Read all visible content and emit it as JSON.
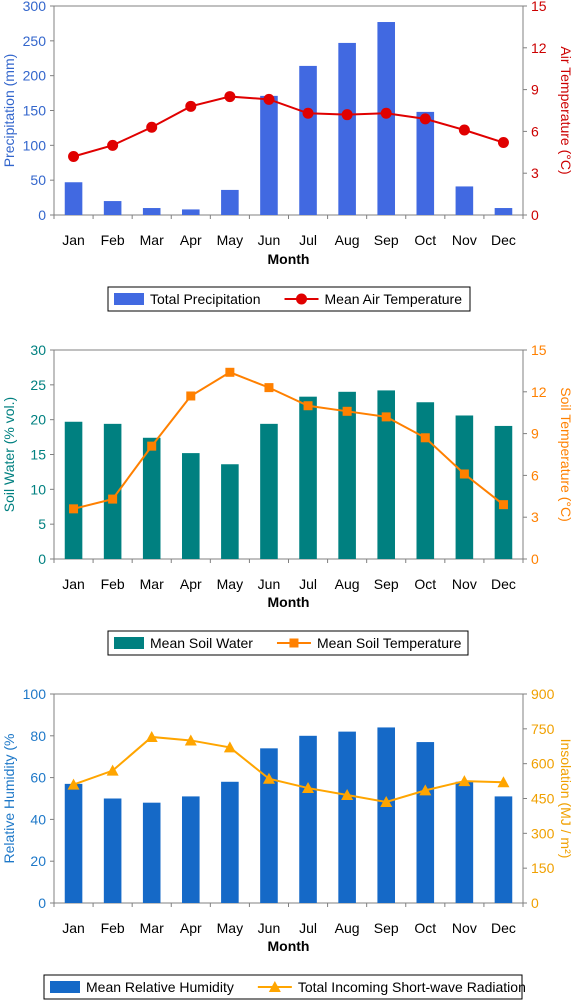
{
  "x_title": "Month",
  "months": [
    "Jan",
    "Feb",
    "Mar",
    "Apr",
    "May",
    "Jun",
    "Jul",
    "Aug",
    "Sep",
    "Oct",
    "Nov",
    "Dec"
  ],
  "chart_data": [
    {
      "type": "bar",
      "categories": [
        "Jan",
        "Feb",
        "Mar",
        "Apr",
        "May",
        "Jun",
        "Jul",
        "Aug",
        "Sep",
        "Oct",
        "Nov",
        "Dec"
      ],
      "xlabel": "Month",
      "left_axis": {
        "label": "Precipitation (mm)",
        "ylim": [
          0,
          300
        ],
        "ticks": [
          0,
          50,
          100,
          150,
          200,
          250,
          300
        ],
        "color": "#3366cc"
      },
      "right_axis": {
        "label": "Air Temperature (°C)",
        "ylim": [
          0,
          15
        ],
        "ticks": [
          0,
          3,
          6,
          9,
          12,
          15
        ],
        "color": "#cc0000"
      },
      "series": [
        {
          "name": "Total Precipitation",
          "kind": "bar",
          "axis": "left",
          "color": "#4169e1",
          "values": [
            47,
            20,
            10,
            8,
            36,
            171,
            214,
            247,
            277,
            148,
            41,
            10
          ]
        },
        {
          "name": "Mean Air Temperature",
          "kind": "line",
          "axis": "right",
          "color": "#e00000",
          "marker": "circle",
          "values": [
            4.2,
            5.0,
            6.3,
            7.8,
            8.5,
            8.3,
            7.3,
            7.2,
            7.3,
            6.9,
            6.1,
            5.2
          ]
        }
      ],
      "legend": {
        "position": "bottom"
      }
    },
    {
      "type": "bar",
      "categories": [
        "Jan",
        "Feb",
        "Mar",
        "Apr",
        "May",
        "Jun",
        "Jul",
        "Aug",
        "Sep",
        "Oct",
        "Nov",
        "Dec"
      ],
      "xlabel": "Month",
      "left_axis": {
        "label": "Soil Water (% vol.)",
        "ylim": [
          0,
          30
        ],
        "ticks": [
          0,
          5,
          10,
          15,
          20,
          25,
          30
        ],
        "color": "#008080"
      },
      "right_axis": {
        "label": "Soil Temperature (°C)",
        "ylim": [
          0,
          15
        ],
        "ticks": [
          0,
          3,
          6,
          9,
          12,
          15
        ],
        "color": "#ff8000"
      },
      "series": [
        {
          "name": "Mean Soil Water",
          "kind": "bar",
          "axis": "left",
          "color": "#008080",
          "values": [
            19.7,
            19.4,
            17.4,
            15.2,
            13.6,
            19.4,
            23.3,
            24.0,
            24.2,
            22.5,
            20.6,
            19.1
          ]
        },
        {
          "name": "Mean Soil Temperature",
          "kind": "line",
          "axis": "right",
          "color": "#ff8000",
          "marker": "square",
          "values": [
            3.6,
            4.3,
            8.1,
            11.7,
            13.4,
            12.3,
            11.0,
            10.6,
            10.2,
            8.7,
            6.1,
            3.9
          ]
        }
      ],
      "legend": {
        "position": "bottom"
      }
    },
    {
      "type": "bar",
      "categories": [
        "Jan",
        "Feb",
        "Mar",
        "Apr",
        "May",
        "Jun",
        "Jul",
        "Aug",
        "Sep",
        "Oct",
        "Nov",
        "Dec"
      ],
      "xlabel": "Month",
      "left_axis": {
        "label": "Relative Humidity (%",
        "ylim": [
          0,
          100
        ],
        "ticks": [
          0,
          20,
          40,
          60,
          80,
          100
        ],
        "color": "#1e78c8"
      },
      "right_axis": {
        "label": "Insolation (MJ / m²)",
        "ylim": [
          0,
          900
        ],
        "ticks": [
          0,
          150,
          300,
          450,
          600,
          750,
          900
        ],
        "color": "#f0a000"
      },
      "series": [
        {
          "name": "Mean Relative Humidity",
          "kind": "bar",
          "axis": "left",
          "color": "#1569c7",
          "values": [
            57,
            50,
            48,
            51,
            58,
            74,
            80,
            82,
            84,
            77,
            58,
            51
          ]
        },
        {
          "name": "Total Incoming Short-wave Radiation",
          "kind": "line",
          "axis": "right",
          "color": "#ffa500",
          "marker": "triangle",
          "values": [
            510,
            570,
            715,
            700,
            670,
            535,
            495,
            465,
            435,
            485,
            525,
            520
          ]
        }
      ],
      "legend": {
        "position": "bottom"
      }
    }
  ]
}
